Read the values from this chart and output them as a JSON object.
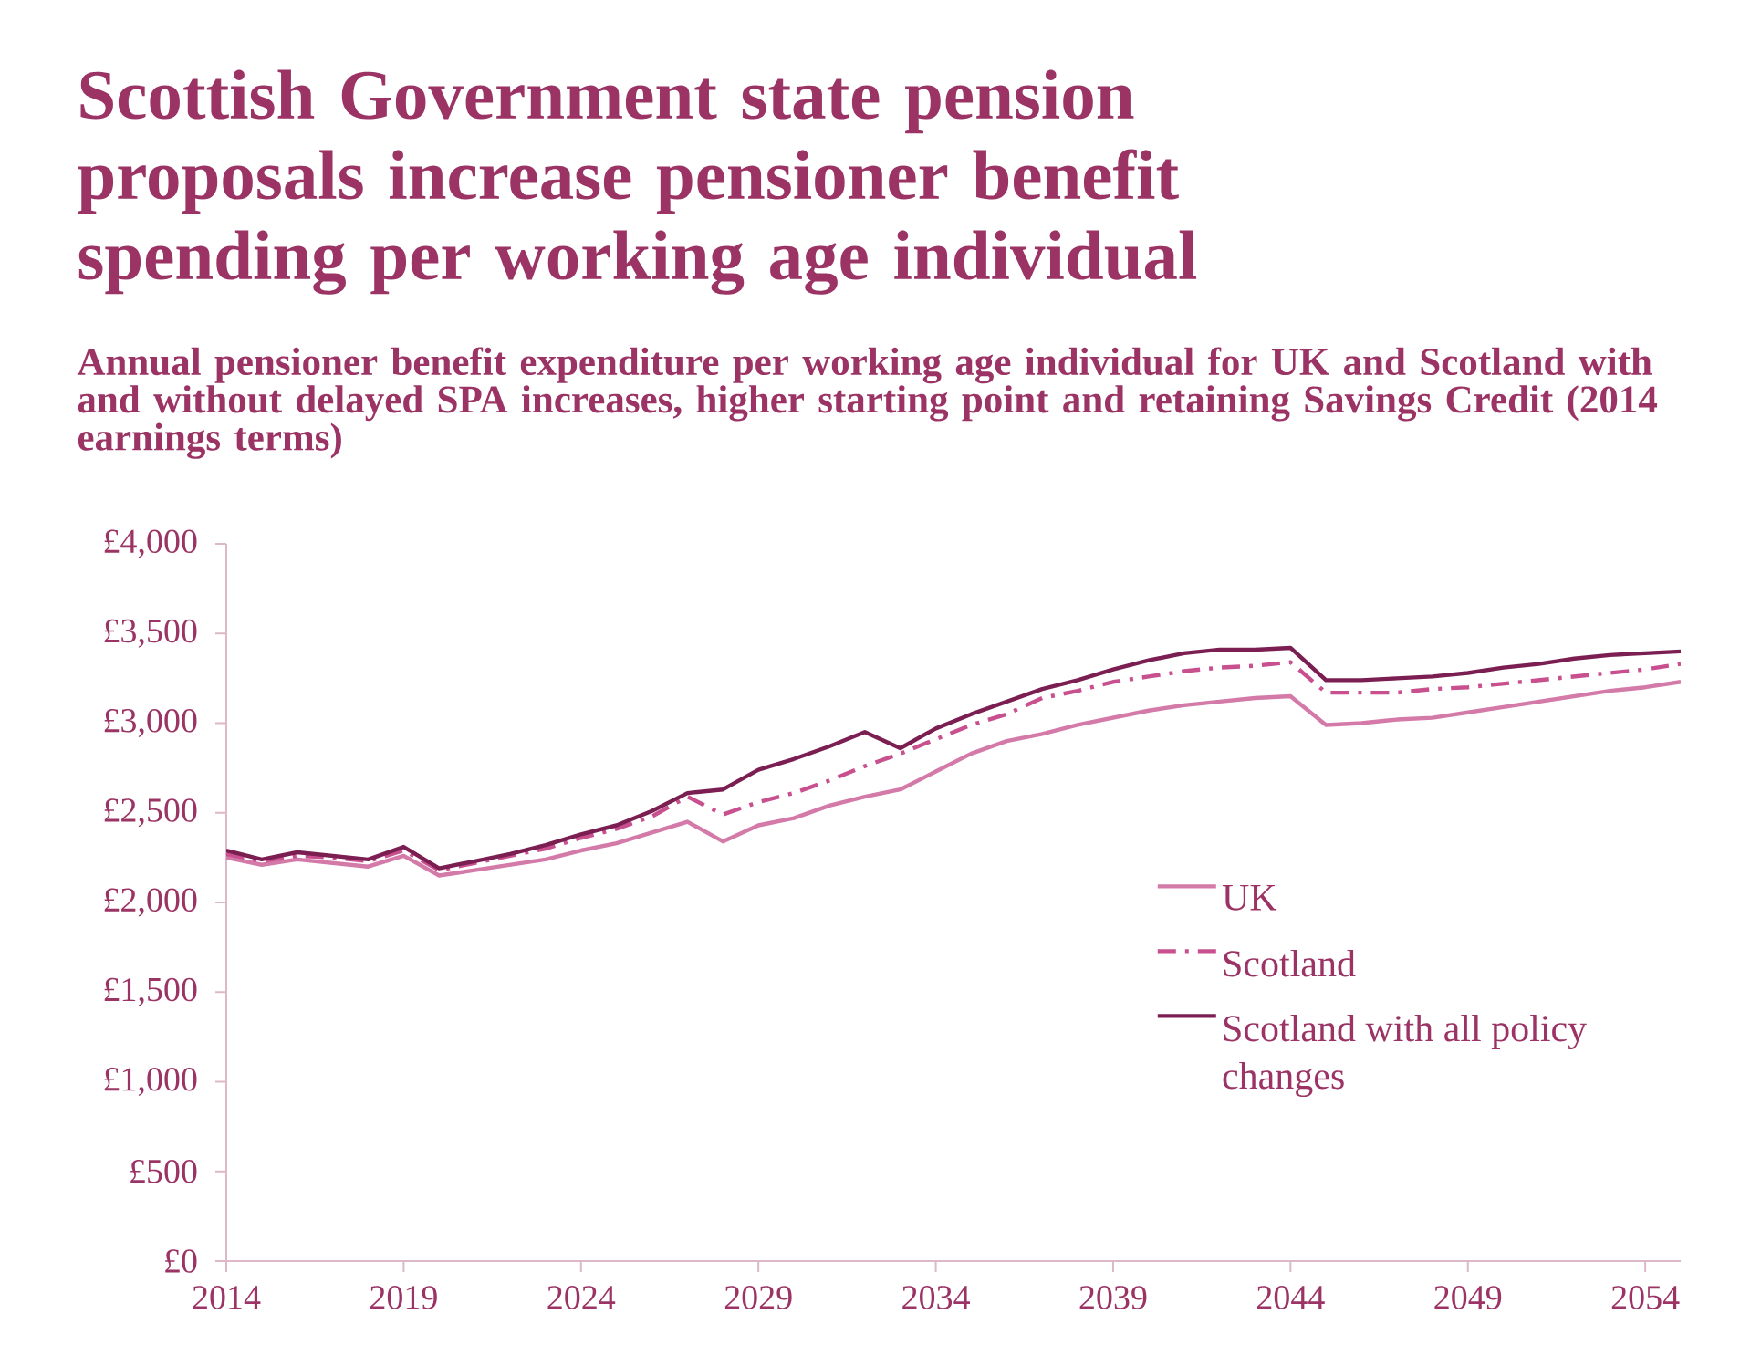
{
  "chart_data": {
    "type": "line",
    "title": "Scottish Government state pension proposals increase pensioner benefit spending per working age individual",
    "subtitle": "Annual pensioner benefit expenditure per working age individual for UK and Scotland with and without delayed SPA increases, higher starting point and retaining Savings Credit (2014 earnings terms)",
    "x": [
      2014,
      2015,
      2016,
      2017,
      2018,
      2019,
      2020,
      2021,
      2022,
      2023,
      2024,
      2025,
      2026,
      2027,
      2028,
      2029,
      2030,
      2031,
      2032,
      2033,
      2034,
      2035,
      2036,
      2037,
      2038,
      2039,
      2040,
      2041,
      2042,
      2043,
      2044,
      2045,
      2046,
      2047,
      2048,
      2049,
      2050,
      2051,
      2052,
      2053,
      2054,
      2055
    ],
    "series": [
      {
        "name": "UK",
        "color": "#d47aa8",
        "line_style": "solid",
        "values": [
          2250,
          2210,
          2240,
          2220,
          2200,
          2260,
          2150,
          2180,
          2210,
          2240,
          2290,
          2330,
          2390,
          2450,
          2340,
          2430,
          2470,
          2540,
          2590,
          2630,
          2730,
          2830,
          2900,
          2940,
          2990,
          3030,
          3070,
          3100,
          3120,
          3140,
          3150,
          2990,
          3000,
          3020,
          3030,
          3060,
          3090,
          3120,
          3150,
          3180,
          3200,
          3230
        ]
      },
      {
        "name": "Scotland",
        "color": "#c8508e",
        "line_style": "dashdot",
        "values": [
          2270,
          2230,
          2260,
          2250,
          2230,
          2290,
          2180,
          2220,
          2260,
          2300,
          2360,
          2410,
          2480,
          2590,
          2490,
          2560,
          2610,
          2680,
          2760,
          2830,
          2910,
          2990,
          3050,
          3140,
          3180,
          3230,
          3260,
          3290,
          3310,
          3320,
          3340,
          3170,
          3170,
          3170,
          3190,
          3200,
          3220,
          3240,
          3260,
          3280,
          3300,
          3330
        ]
      },
      {
        "name": "Scotland with all policy changes",
        "color": "#7b1f52",
        "line_style": "solid",
        "values": [
          2290,
          2240,
          2280,
          2260,
          2240,
          2310,
          2190,
          2230,
          2270,
          2320,
          2380,
          2430,
          2510,
          2610,
          2630,
          2740,
          2800,
          2870,
          2950,
          2860,
          2970,
          3050,
          3120,
          3190,
          3240,
          3300,
          3350,
          3390,
          3410,
          3410,
          3420,
          3240,
          3240,
          3250,
          3260,
          3280,
          3310,
          3330,
          3360,
          3380,
          3390,
          3400
        ]
      }
    ],
    "xlim": [
      2014,
      2055
    ],
    "ylim": [
      0,
      4000
    ],
    "xticks": [
      2014,
      2019,
      2024,
      2029,
      2034,
      2039,
      2044,
      2049,
      2054
    ],
    "yticks": [
      {
        "value": 0,
        "label": "£0"
      },
      {
        "value": 500,
        "label": "£500"
      },
      {
        "value": 1000,
        "label": "£1,000"
      },
      {
        "value": 1500,
        "label": "£1,500"
      },
      {
        "value": 2000,
        "label": "£2,000"
      },
      {
        "value": 2500,
        "label": "£2,500"
      },
      {
        "value": 3000,
        "label": "£3,000"
      },
      {
        "value": 3500,
        "label": "£3,500"
      },
      {
        "value": 4000,
        "label": "£4,000"
      }
    ],
    "grid": false,
    "legend": "right",
    "marker": "none"
  }
}
